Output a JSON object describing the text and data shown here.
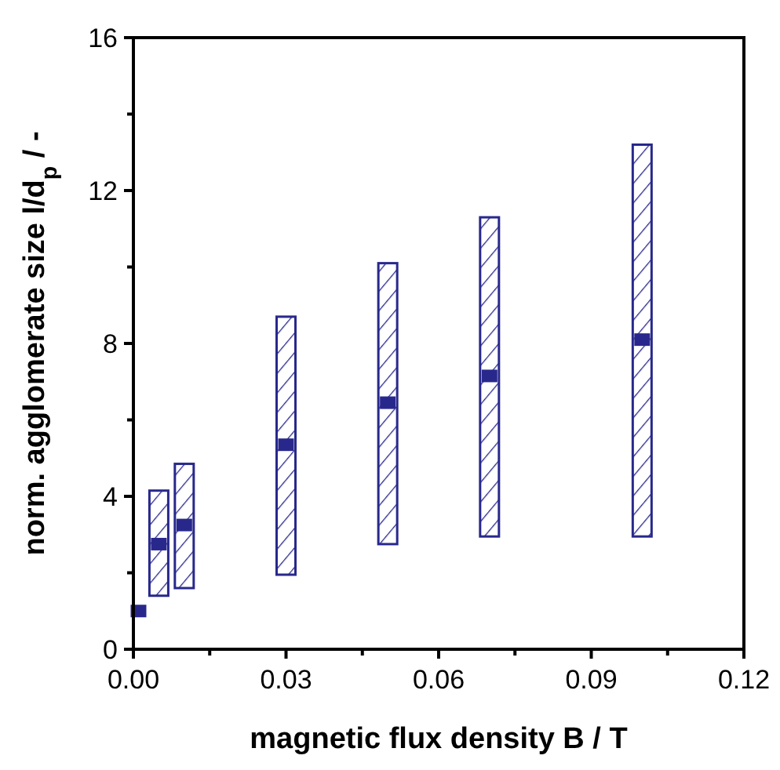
{
  "chart_data": {
    "type": "bar",
    "xlabel": "magnetic flux density B / T",
    "ylabel": "norm. agglomerate size l/d$_{p}$ / -",
    "xlim": [
      0,
      0.12
    ],
    "xticks": [
      {
        "value": 0,
        "label": "0.00"
      },
      {
        "value": 0.015,
        "label": null
      },
      {
        "value": 0.03,
        "label": "0.03"
      },
      {
        "value": 0.045,
        "label": null
      },
      {
        "value": 0.06,
        "label": "0.06"
      },
      {
        "value": 0.075,
        "label": null
      },
      {
        "value": 0.09,
        "label": "0.09"
      },
      {
        "value": 0.105,
        "label": null
      },
      {
        "value": 0.12,
        "label": "0.12"
      }
    ],
    "ylim": [
      0,
      16
    ],
    "yticks": [
      0,
      {
        "value": 2,
        "label": null
      },
      4,
      {
        "value": 6,
        "label": null
      },
      8,
      {
        "value": 10,
        "label": null
      },
      12,
      {
        "value": 14,
        "label": null
      },
      16
    ],
    "grid": false,
    "series": [
      {
        "color": "#28288c",
        "x": [
          0.005,
          0.01,
          0.03,
          0.05,
          0.07,
          0.1
        ],
        "base": [
          1.4,
          1.6,
          1.95,
          2.75,
          2.95,
          2.95
        ],
        "values": [
          2.75,
          3.25,
          6.75,
          7.35,
          8.35,
          10.25
        ]
      },
      {
        "type": "scatter",
        "color": "#28288c",
        "marker": "square",
        "x": [
          0.001,
          0.005,
          0.01,
          0.03,
          0.05,
          0.07,
          0.1
        ],
        "values": [
          1.0,
          2.75,
          3.25,
          5.35,
          6.45,
          7.15,
          8.1
        ]
      }
    ]
  }
}
